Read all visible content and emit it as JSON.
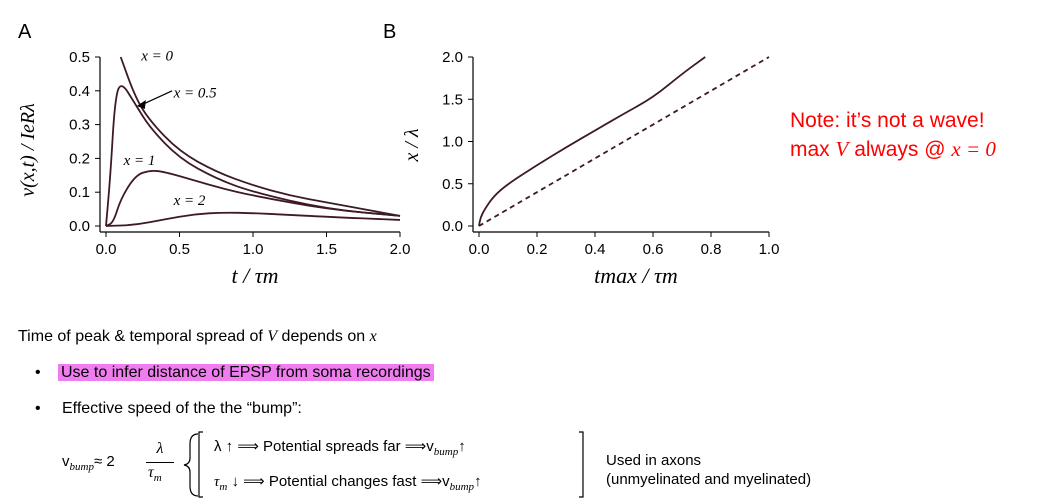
{
  "colors": {
    "curve": "#3d1a24",
    "note": "#ff0000",
    "highlight": "#f07df0"
  },
  "chart_data": [
    {
      "panel": "A",
      "type": "line",
      "xlabel": "t / τm",
      "ylabel": "v(x,t) / IeRλ",
      "xlim": [
        0,
        2
      ],
      "ylim": [
        0,
        0.5
      ],
      "xticks": [
        "0.0",
        "0.5",
        "1.0",
        "1.5",
        "2.0"
      ],
      "yticks": [
        "0.0",
        "0.1",
        "0.2",
        "0.3",
        "0.4",
        "0.5"
      ],
      "series": [
        {
          "name": "x = 0",
          "x": [
            0.1,
            0.2,
            0.3,
            0.5,
            0.75,
            1.0,
            1.25,
            1.5,
            2.0
          ],
          "values": [
            0.5,
            0.38,
            0.31,
            0.22,
            0.16,
            0.12,
            0.09,
            0.07,
            0.03
          ]
        },
        {
          "name": "x = 0.5",
          "x": [
            0.0,
            0.03,
            0.06,
            0.1,
            0.2,
            0.3,
            0.5,
            0.75,
            1.0,
            1.5,
            2.0
          ],
          "values": [
            0.0,
            0.15,
            0.37,
            0.43,
            0.36,
            0.29,
            0.2,
            0.14,
            0.1,
            0.05,
            0.03
          ]
        },
        {
          "name": "x = 1",
          "x": [
            0.0,
            0.05,
            0.1,
            0.2,
            0.3,
            0.4,
            0.6,
            0.8,
            1.0,
            1.5,
            2.0
          ],
          "values": [
            0.0,
            0.01,
            0.08,
            0.15,
            0.165,
            0.16,
            0.135,
            0.11,
            0.09,
            0.05,
            0.03
          ]
        },
        {
          "name": "x = 2",
          "x": [
            0.0,
            0.2,
            0.4,
            0.6,
            0.8,
            1.0,
            1.2,
            1.5,
            2.0
          ],
          "values": [
            0.0,
            0.003,
            0.02,
            0.035,
            0.04,
            0.038,
            0.034,
            0.027,
            0.018
          ]
        }
      ],
      "annotations": [
        "x = 0",
        "x = 0.5",
        "x = 1",
        "x = 2"
      ]
    },
    {
      "panel": "B",
      "type": "line",
      "xlabel": "tmax / τm",
      "ylabel": "x / λ",
      "xlim": [
        0,
        1
      ],
      "ylim": [
        0,
        2
      ],
      "xticks": [
        "0.0",
        "0.2",
        "0.4",
        "0.6",
        "0.8",
        "1.0"
      ],
      "yticks": [
        "0.0",
        "0.5",
        "1.0",
        "1.5",
        "2.0"
      ],
      "series": [
        {
          "style": "solid",
          "x": [
            0.0,
            0.005,
            0.02,
            0.05,
            0.1,
            0.2,
            0.3,
            0.4,
            0.5,
            0.6,
            0.7,
            0.78
          ],
          "values": [
            0.0,
            0.1,
            0.2,
            0.35,
            0.5,
            0.72,
            0.93,
            1.13,
            1.33,
            1.52,
            1.8,
            2.0
          ]
        },
        {
          "style": "dashed",
          "x": [
            0.0,
            1.0
          ],
          "values": [
            0.0,
            2.0
          ]
        }
      ]
    }
  ],
  "note": {
    "line1": "Note: it’s not a wave!",
    "line2_a": "max",
    "line2_b": "V",
    "line2_c": "always @",
    "line2_d": "x = 0"
  },
  "text": {
    "line1_a": "Time of peak & temporal spread of ",
    "line1_v": "V",
    "line1_b": " depends on ",
    "line1_x": "x",
    "bullet1": "Use to infer distance of EPSP from soma recordings",
    "bullet2": "Effective speed of the the “bump”:",
    "bullet_char": "•"
  },
  "equation": {
    "lhs": "v",
    "lhs_sub": "bump",
    "approx": "≈ 2",
    "frac_num": "λ",
    "frac_den": "τ",
    "frac_den_sub": "m",
    "row1_a": "λ ↑ ⟹ Potential spreads far ⟹v",
    "row1_sub": "bump",
    "row1_b": "↑",
    "row2_a": "τ",
    "row2_sub1": "m",
    "row2_b": " ↓ ⟹ Potential changes fast  ⟹v",
    "row2_sub2": "bump",
    "row2_c": "↑",
    "side1": "Used in axons",
    "side2": "(unmyelinated and myelinated)"
  }
}
